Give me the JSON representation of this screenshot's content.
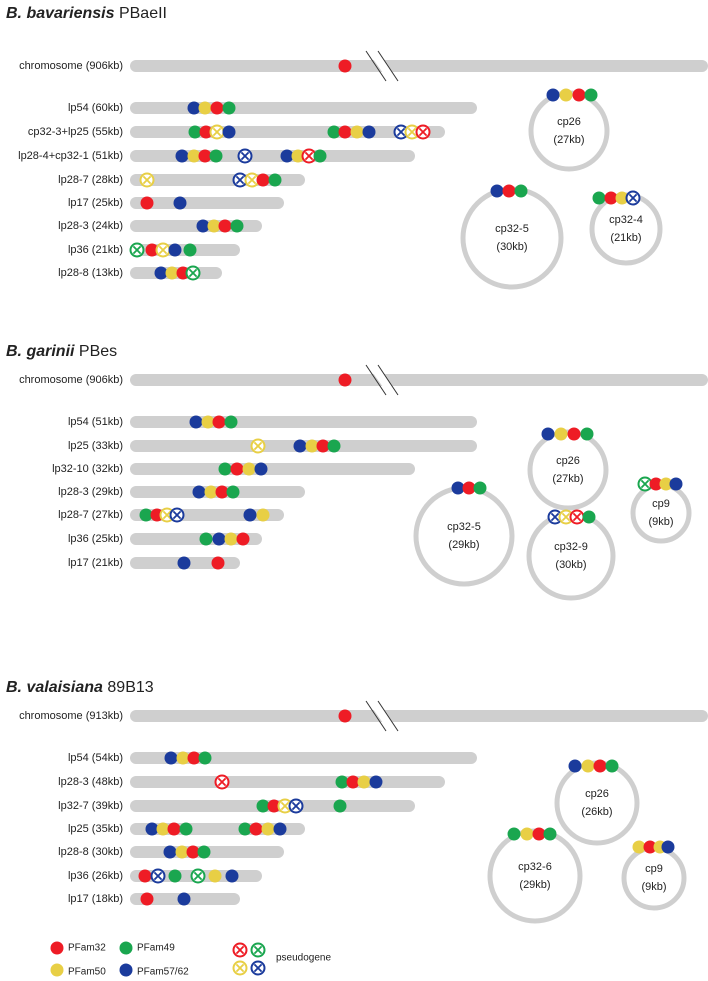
{
  "sections": [
    {
      "title": {
        "italic": "B. bavariensis",
        "rest": "PBaeII"
      },
      "chromosome": "chromosome (906kb)",
      "linear": [
        "lp54 (60kb)",
        "cp32-3+lp25 (55kb)",
        "lp28-4+cp32-1 (51kb)",
        "lp28-7 (28kb)",
        "lp17 (25kb)",
        "lp28-3 (24kb)",
        "lp36 (21kb)",
        "lp28-8 (13kb)"
      ],
      "circular": [
        {
          "name": "cp26",
          "size": "(27kb)"
        },
        {
          "name": "cp32-5",
          "size": "(30kb)"
        },
        {
          "name": "cp32-4",
          "size": "(21kb)"
        }
      ]
    },
    {
      "title": {
        "italic": "B. garinii",
        "rest": "PBes"
      },
      "chromosome": "chromosome (906kb)",
      "linear": [
        "lp54 (51kb)",
        "lp25 (33kb)",
        "lp32-10 (32kb)",
        "lp28-3 (29kb)",
        "lp28-7 (27kb)",
        "lp36 (25kb)",
        "lp17 (21kb)"
      ],
      "circular": [
        {
          "name": "cp26",
          "size": "(27kb)"
        },
        {
          "name": "cp32-5",
          "size": "(29kb)"
        },
        {
          "name": "cp32-9",
          "size": "(30kb)"
        },
        {
          "name": "cp9",
          "size": "(9kb)"
        }
      ]
    },
    {
      "title": {
        "italic": "B. valaisiana",
        "rest": "89B13"
      },
      "chromosome": "chromosome (913kb)",
      "linear": [
        "lp54 (54kb)",
        "lp28-3 (48kb)",
        "lp32-7 (39kb)",
        "lp25 (35kb)",
        "lp28-8 (30kb)",
        "lp36 (26kb)",
        "lp17 (18kb)"
      ],
      "circular": [
        {
          "name": "cp26",
          "size": "(26kb)"
        },
        {
          "name": "cp32-6",
          "size": "(29kb)"
        },
        {
          "name": "cp9",
          "size": "(9kb)"
        }
      ]
    }
  ],
  "legend": {
    "items": [
      "PFam32",
      "PFam49",
      "PFam50",
      "PFam57/62"
    ],
    "pseudogene": "pseudogene"
  }
}
